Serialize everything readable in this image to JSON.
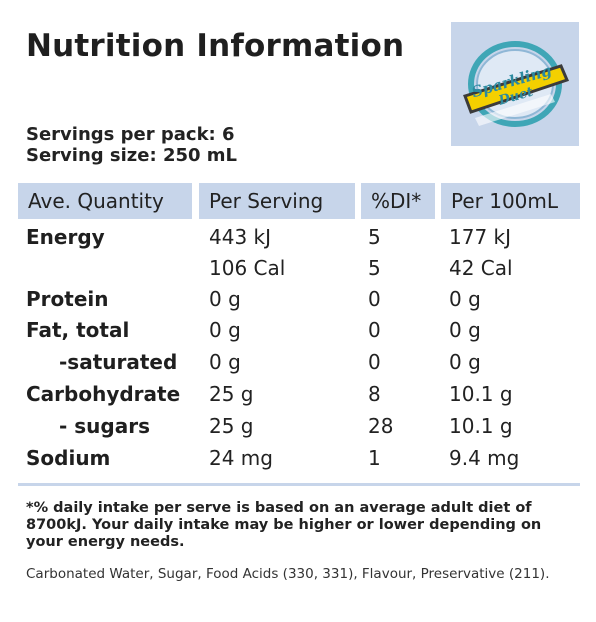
{
  "title": "Nutrition Information",
  "logo": {
    "text_line1": "Sparkling",
    "text_line2": "Duet"
  },
  "servings_per_pack": "Servings per pack: 6",
  "serving_size": "Serving size: 250 mL",
  "table": {
    "headers": [
      "Ave. Quantity",
      "Per Serving",
      "%DI*",
      "Per 100mL"
    ],
    "rows": [
      [
        "Energy",
        "443 kJ",
        "5",
        "177 kJ"
      ],
      [
        "",
        "106 Cal",
        "5",
        "42 Cal"
      ],
      [
        "Protein",
        "0 g",
        "0",
        "0 g"
      ],
      [
        "Fat, total",
        "0 g",
        "0",
        "0 g"
      ],
      [
        "-saturated",
        "0 g",
        "0",
        "0 g"
      ],
      [
        "Carbohydrate",
        "25 g",
        "8",
        "10.1 g"
      ],
      [
        "- sugars",
        "25 g",
        "28",
        "10.1 g"
      ],
      [
        "Sodium",
        "24 mg",
        "1",
        "9.4 mg"
      ]
    ]
  },
  "footnote": "*% daily intake per serve is based on an average adult diet of 8700kJ. Your daily intake may be higher or lower depending on your energy needs.",
  "ingredients": "Carbonated Water, Sugar, Food Acids (330, 331), Flavour, Preservative (211).",
  "colors": {
    "header_bg": "#c7d5ea",
    "logo_yellow": "#f3d000",
    "logo_teal": "#3fa6b6"
  }
}
